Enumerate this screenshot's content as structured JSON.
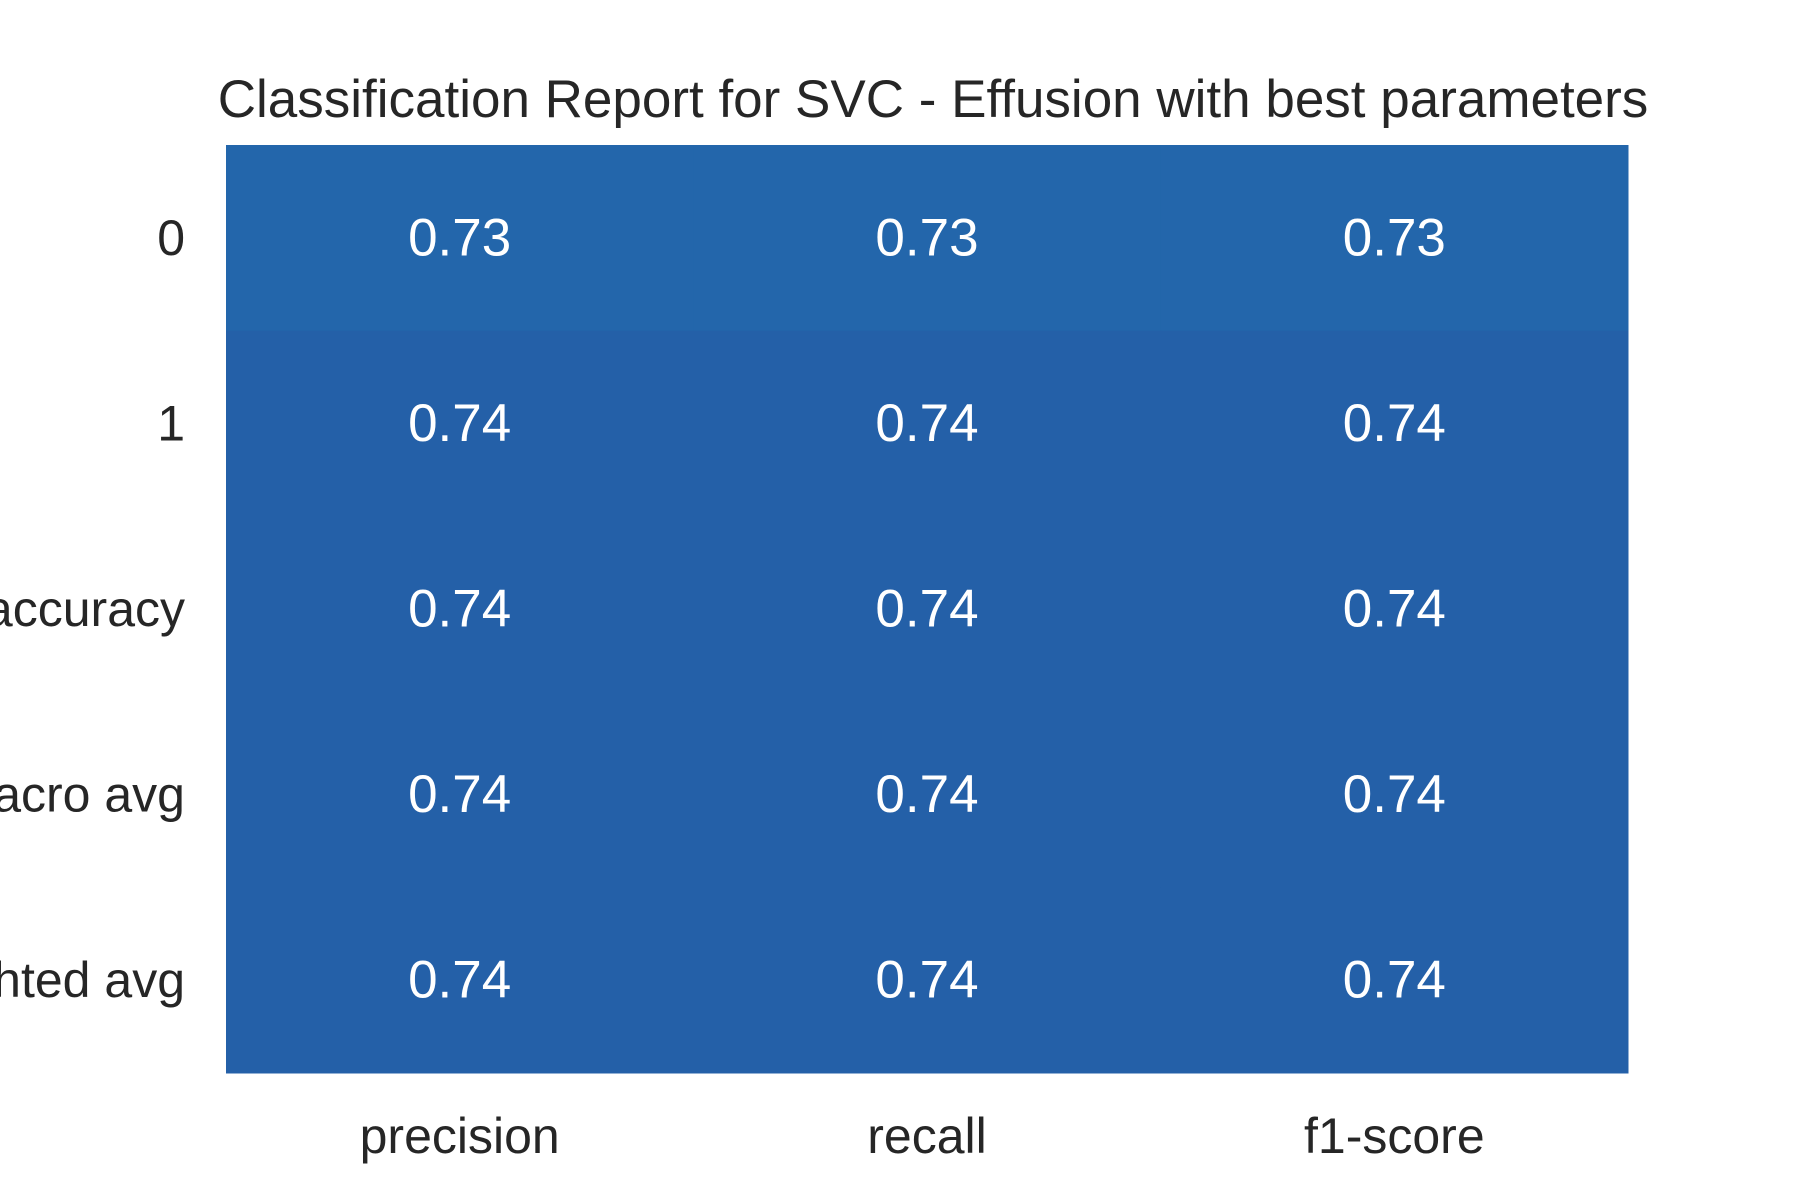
{
  "chart_data": {
    "type": "heatmap",
    "title": "Classification Report for SVC - Effusion with best parameters",
    "xlabel": "",
    "ylabel": "",
    "columns": [
      "precision",
      "recall",
      "f1-score"
    ],
    "rows": [
      "0",
      "1",
      "accuracy",
      "macro avg",
      "weighted avg"
    ],
    "values": [
      [
        0.73,
        0.73,
        0.73
      ],
      [
        0.74,
        0.74,
        0.74
      ],
      [
        0.74,
        0.74,
        0.74
      ],
      [
        0.74,
        0.74,
        0.74
      ],
      [
        0.74,
        0.74,
        0.74
      ]
    ],
    "cell_labels": [
      [
        "0.73",
        "0.73",
        "0.73"
      ],
      [
        "0.74",
        "0.74",
        "0.74"
      ],
      [
        "0.74",
        "0.74",
        "0.74"
      ],
      [
        "0.74",
        "0.74",
        "0.74"
      ],
      [
        "0.74",
        "0.74",
        "0.74"
      ]
    ],
    "colormap": "Blues",
    "colors": {
      "low": "#2366ab",
      "high": "#2460a8",
      "cell_text": "#ffffff",
      "tick_text": "#262626",
      "background": "#ffffff"
    },
    "colorbar": false,
    "grid": false
  }
}
